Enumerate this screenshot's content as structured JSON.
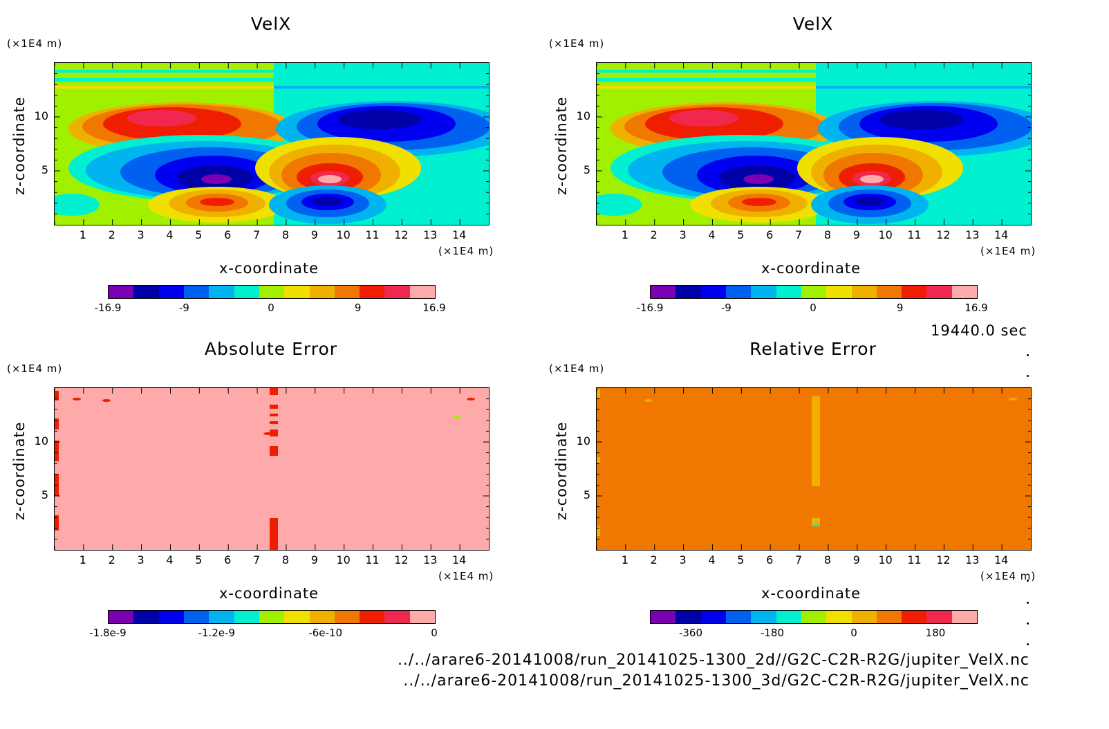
{
  "time_label": "19440.0 sec",
  "footer_lines": [
    "../../arare6-20141008/run_20141025-1300_2d//G2C-C2R-R2G/jupiter_VelX.nc",
    "../../arare6-20141008/run_20141025-1300_3d/G2C-C2R-R2G/jupiter_VelX.nc"
  ],
  "palette": [
    "#7a00b0",
    "#0000a8",
    "#0000f0",
    "#0060f0",
    "#00b4f0",
    "#00f0d0",
    "#a0f000",
    "#f0e000",
    "#f0b000",
    "#f07800",
    "#f01e00",
    "#f02850",
    "#ffaaaa"
  ],
  "chart_data": [
    {
      "type": "heatmap",
      "title": "VelX",
      "xlabel": "x-coordinate",
      "ylabel": "z-coordinate",
      "xunit": "(×1E4 m)",
      "yunit": "(×1E4 m)",
      "xticks": [
        "1",
        "2",
        "3",
        "4",
        "5",
        "6",
        "7",
        "8",
        "9",
        "10",
        "11",
        "12",
        "13",
        "14"
      ],
      "yticks": [
        "5",
        "10"
      ],
      "xlim": [
        0,
        15
      ],
      "ylim": [
        0,
        15
      ],
      "colorbar": {
        "min": -16.9,
        "max": 16.9,
        "labels": [
          "-16.9",
          "-9",
          "0",
          "9",
          "16.9"
        ]
      },
      "field": "velx"
    },
    {
      "type": "heatmap",
      "title": "VelX",
      "xlabel": "x-coordinate",
      "ylabel": "z-coordinate",
      "xunit": "(×1E4 m)",
      "yunit": "(×1E4 m)",
      "xticks": [
        "1",
        "2",
        "3",
        "4",
        "5",
        "6",
        "7",
        "8",
        "9",
        "10",
        "11",
        "12",
        "13",
        "14"
      ],
      "yticks": [
        "5",
        "10"
      ],
      "xlim": [
        0,
        15
      ],
      "ylim": [
        0,
        15
      ],
      "colorbar": {
        "min": -16.9,
        "max": 16.9,
        "labels": [
          "-16.9",
          "-9",
          "0",
          "9",
          "16.9"
        ]
      },
      "field": "velx"
    },
    {
      "type": "heatmap",
      "title": "Absolute Error",
      "xlabel": "x-coordinate",
      "ylabel": "z-coordinate",
      "xunit": "(×1E4 m)",
      "yunit": "(×1E4 m)",
      "xticks": [
        "1",
        "2",
        "3",
        "4",
        "5",
        "6",
        "7",
        "8",
        "9",
        "10",
        "11",
        "12",
        "13",
        "14"
      ],
      "yticks": [
        "5",
        "10"
      ],
      "xlim": [
        0,
        15
      ],
      "ylim": [
        0,
        15
      ],
      "colorbar": {
        "min": -1.8e-09,
        "max": 0,
        "labels": [
          "-1.8e-9",
          "-1.2e-9",
          "-6e-10",
          "0"
        ]
      },
      "field": "abserr"
    },
    {
      "type": "heatmap",
      "title": "Relative Error",
      "xlabel": "x-coordinate",
      "ylabel": "z-coordinate",
      "xunit": "(×1E4 m)",
      "yunit": "(×1E4 m)",
      "xticks": [
        "1",
        "2",
        "3",
        "4",
        "5",
        "6",
        "7",
        "8",
        "9",
        "10",
        "11",
        "12",
        "13",
        "14"
      ],
      "yticks": [
        "5",
        "10"
      ],
      "xlim": [
        0,
        15
      ],
      "ylim": [
        0,
        15
      ],
      "colorbar": {
        "min": -450,
        "max": 270,
        "labels": [
          "-360",
          "-180",
          "0",
          "180"
        ]
      },
      "field": "relerr"
    }
  ]
}
